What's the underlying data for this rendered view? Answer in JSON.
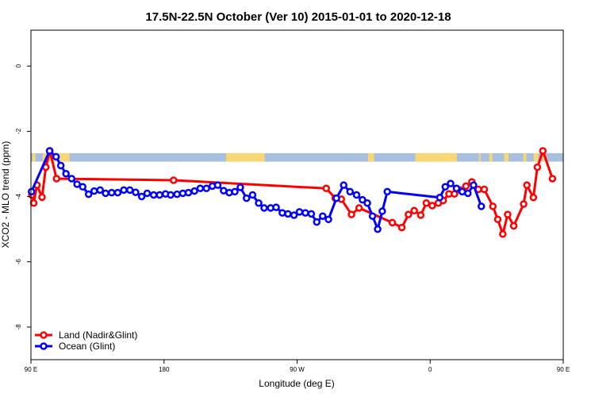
{
  "chart_data": {
    "type": "line",
    "title": "17.5N-22.5N October (Ver 10)   2015-01-01 to 2020-12-18",
    "xlabel": "Longitude (deg E)",
    "ylabel": "XCO2 - MLO trend (ppm)",
    "xlim": [
      90,
      450
    ],
    "ylim": [
      -9,
      1.1
    ],
    "xticks": [
      {
        "value": 90,
        "label": "90 E"
      },
      {
        "value": 180,
        "label": "180"
      },
      {
        "value": 270,
        "label": "90 W"
      },
      {
        "value": 360,
        "label": "0"
      },
      {
        "value": 450,
        "label": "90 E"
      },
      {
        "value": 540,
        "label": "180"
      }
    ],
    "yticks": [
      {
        "value": 0,
        "label": "0"
      },
      {
        "value": -2,
        "label": "-2"
      },
      {
        "value": -4,
        "label": "-4"
      },
      {
        "value": -6,
        "label": "-6"
      },
      {
        "value": -8,
        "label": "-8"
      }
    ],
    "land_strip": {
      "y_top": -2.67,
      "y_bottom": -2.93,
      "ocean_color": "#a9bfe0",
      "land_color": "#f8d775",
      "land_segments": [
        [
          91,
          93
        ],
        [
          98,
          116
        ],
        [
          222,
          248
        ],
        [
          318,
          322
        ],
        [
          350,
          378
        ],
        [
          393,
          394
        ],
        [
          400,
          402
        ],
        [
          410,
          413
        ],
        [
          423,
          425
        ],
        [
          430,
          433
        ],
        [
          436,
          438
        ]
      ]
    },
    "series": [
      {
        "name": "Land (Nadir&Glint)",
        "color": "#ff0000",
        "points": [
          [
            90.6,
            -3.95
          ],
          [
            91.9,
            -4.2
          ],
          [
            94.1,
            -3.65
          ],
          [
            97.5,
            -4.02
          ],
          [
            100.1,
            -3.1
          ],
          [
            102.8,
            -2.6
          ],
          [
            107.3,
            -3.45
          ],
          [
            186.5,
            -3.5
          ],
          [
            289.7,
            -3.75
          ],
          [
            295.8,
            -4.05
          ],
          [
            299.9,
            -4.08
          ],
          [
            306.8,
            -4.55
          ],
          [
            311.9,
            -4.35
          ],
          [
            334.4,
            -4.8
          ],
          [
            340.8,
            -4.95
          ],
          [
            345.3,
            -4.55
          ],
          [
            349.2,
            -4.43
          ],
          [
            353.6,
            -4.57
          ],
          [
            357.4,
            -4.2
          ],
          [
            361.4,
            -4.28
          ],
          [
            365.5,
            -4.2
          ],
          [
            368.8,
            -4.12
          ],
          [
            372.7,
            -3.92
          ],
          [
            376.4,
            -3.92
          ],
          [
            380.2,
            -3.8
          ],
          [
            384.2,
            -3.68
          ],
          [
            388.2,
            -3.55
          ],
          [
            392.6,
            -3.78
          ],
          [
            396.6,
            -3.78
          ],
          [
            402.4,
            -4.3
          ],
          [
            405.7,
            -4.7
          ],
          [
            409.1,
            -5.15
          ],
          [
            412.4,
            -4.55
          ],
          [
            416.5,
            -4.9
          ],
          [
            423.2,
            -4.23
          ],
          [
            425.4,
            -3.65
          ],
          [
            429.8,
            -4.03
          ],
          [
            432.5,
            -3.1
          ],
          [
            436.2,
            -2.6
          ],
          [
            442.7,
            -3.45
          ]
        ]
      },
      {
        "name": "Ocean (Glint)",
        "color": "#0000ff",
        "points": [
          [
            90.4,
            -3.85
          ],
          [
            102.6,
            -2.6
          ],
          [
            107.0,
            -2.78
          ],
          [
            110.2,
            -3.05
          ],
          [
            113.7,
            -3.3
          ],
          [
            117.5,
            -3.45
          ],
          [
            121.2,
            -3.62
          ],
          [
            125.0,
            -3.7
          ],
          [
            129.0,
            -3.93
          ],
          [
            132.8,
            -3.83
          ],
          [
            136.8,
            -3.8
          ],
          [
            140.5,
            -3.9
          ],
          [
            144.6,
            -3.88
          ],
          [
            148.7,
            -3.88
          ],
          [
            152.8,
            -3.8
          ],
          [
            156.9,
            -3.8
          ],
          [
            160.8,
            -3.87
          ],
          [
            164.9,
            -4.0
          ],
          [
            168.6,
            -3.9
          ],
          [
            173.0,
            -3.95
          ],
          [
            177.0,
            -3.95
          ],
          [
            181.0,
            -3.92
          ],
          [
            184.5,
            -3.95
          ],
          [
            188.8,
            -3.93
          ],
          [
            192.7,
            -3.9
          ],
          [
            196.5,
            -3.88
          ],
          [
            200.6,
            -3.83
          ],
          [
            204.5,
            -3.75
          ],
          [
            208.7,
            -3.75
          ],
          [
            212.7,
            -3.68
          ],
          [
            216.3,
            -3.65
          ],
          [
            220.3,
            -3.82
          ],
          [
            224.1,
            -3.88
          ],
          [
            227.9,
            -3.85
          ],
          [
            231.6,
            -3.72
          ],
          [
            235.8,
            -4.05
          ],
          [
            239.9,
            -3.95
          ],
          [
            244.0,
            -4.2
          ],
          [
            247.7,
            -4.35
          ],
          [
            252.1,
            -4.35
          ],
          [
            255.8,
            -4.33
          ],
          [
            260.0,
            -4.5
          ],
          [
            263.8,
            -4.53
          ],
          [
            267.9,
            -4.57
          ],
          [
            271.6,
            -4.47
          ],
          [
            275.6,
            -4.5
          ],
          [
            279.6,
            -4.53
          ],
          [
            283.3,
            -4.78
          ],
          [
            287.3,
            -4.6
          ],
          [
            291.2,
            -4.7
          ],
          [
            296.6,
            -4.05
          ],
          [
            301.5,
            -3.65
          ],
          [
            305.8,
            -3.85
          ],
          [
            310.2,
            -3.95
          ],
          [
            314.2,
            -4.1
          ],
          [
            317.5,
            -4.2
          ],
          [
            321.0,
            -4.6
          ],
          [
            324.5,
            -5.0
          ],
          [
            327.6,
            -4.45
          ],
          [
            331.0,
            -3.85
          ],
          [
            366.5,
            -4.03
          ],
          [
            370.2,
            -3.7
          ],
          [
            373.8,
            -3.6
          ],
          [
            377.8,
            -3.75
          ],
          [
            381.7,
            -3.85
          ],
          [
            385.5,
            -3.9
          ],
          [
            389.3,
            -3.65
          ],
          [
            394.6,
            -4.3
          ]
        ]
      }
    ],
    "legend": {
      "position": "bottom-left",
      "entries": [
        {
          "label": "Land (Nadir&Glint)",
          "color": "#ff0000"
        },
        {
          "label": "Ocean (Glint)",
          "color": "#0000ff"
        }
      ]
    }
  }
}
